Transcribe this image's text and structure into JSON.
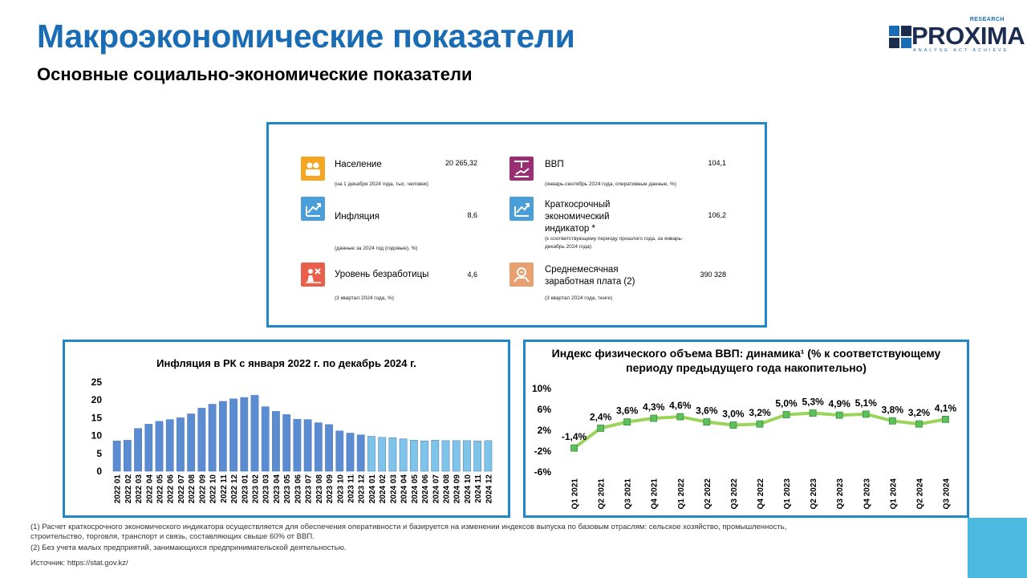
{
  "page": {
    "title": "Макроэкономические показатели",
    "subtitle": "Основные социально-экономические показатели"
  },
  "logo": {
    "name": "PROXIMA",
    "research": "RESEARCH",
    "tagline": "ANALYSE ACT ACHIEVE"
  },
  "indicators": [
    {
      "icon": "population-icon",
      "label": "Население",
      "value": "20 265,32",
      "note": "(на 1 декабря 2024 года, тыс. человек)",
      "color": "#f5a623"
    },
    {
      "icon": "gdp-icon",
      "label": "ВВП",
      "value": "104,1",
      "note": "(январь-сентябрь 2024 года, оперативные данные, %)",
      "color": "#9b2f73"
    },
    {
      "icon": "inflation-icon",
      "label": "Инфляция",
      "value": "8,6",
      "note": "(данные за 2024 год (годовые), %)",
      "color": "#4a9fd8"
    },
    {
      "icon": "short-term-indicator-icon",
      "label": "Краткосрочный экономический индикатор *",
      "value": "106,2",
      "note": "(к соответствующему периоду прошлого года, за январь-декабрь 2024 года)",
      "color": "#4a9fd8"
    },
    {
      "icon": "unemployment-icon",
      "label": "Уровень безработицы",
      "value": "4,6",
      "note": "(3 квартал 2024 года, %)",
      "color": "#e8604c"
    },
    {
      "icon": "salary-icon",
      "label": "Среднемесячная заработная плата (2)",
      "value": "390 328",
      "note": "(3 квартал 2024 года, тенге)",
      "color": "#e8a070"
    }
  ],
  "chart_data": [
    {
      "type": "bar",
      "title": "Инфляция в РК с января 2022 г. по декабрь 2024 г.",
      "categories": [
        "2022 01",
        "2022 02",
        "2022 03",
        "2022 04",
        "2022 05",
        "2022 06",
        "2022 07",
        "2022 08",
        "2022 09",
        "2022 10",
        "2022 11",
        "2022 12",
        "2023 01",
        "2023 02",
        "2023 03",
        "2023 04",
        "2023 05",
        "2023 06",
        "2023 07",
        "2023 08",
        "2023 09",
        "2023 10",
        "2023 11",
        "2023 12",
        "2024 01",
        "2024 02",
        "2024 03",
        "2024 04",
        "2024 05",
        "2024 06",
        "2024 07",
        "2024 08",
        "2024 09",
        "2024 10",
        "2024 11",
        "2024 12"
      ],
      "values": [
        8.5,
        8.7,
        12.0,
        13.2,
        14.0,
        14.5,
        15.0,
        16.1,
        17.7,
        18.8,
        19.6,
        20.3,
        20.7,
        21.3,
        18.1,
        16.8,
        15.9,
        14.6,
        14.5,
        13.6,
        13.1,
        11.3,
        10.7,
        10.2,
        9.8,
        9.5,
        9.4,
        9.1,
        8.7,
        8.5,
        8.7,
        8.6,
        8.6,
        8.6,
        8.5,
        8.6
      ],
      "colors": {
        "2022": "#5b8bd0",
        "2023": "#5b8bd0",
        "2024": "#7ec3e8"
      },
      "ylim": [
        0,
        25
      ],
      "yticks": [
        "0",
        "5",
        "10",
        "15",
        "20",
        "25"
      ]
    },
    {
      "type": "line",
      "title": "Индекс физического объема ВВП: динамика¹ (% к соответствующему периоду предыдущего года накопительно)",
      "categories": [
        "Q1 2021",
        "Q2 2021",
        "Q3 2021",
        "Q4 2021",
        "Q1 2022",
        "Q2 2022",
        "Q3 2022",
        "Q4 2022",
        "Q1 2023",
        "Q2 2023",
        "Q3 2023",
        "Q4 2023",
        "Q1 2024",
        "Q2 2024",
        "Q3 2024"
      ],
      "values": [
        -1.4,
        2.4,
        3.6,
        4.3,
        4.6,
        3.6,
        3.0,
        3.2,
        5.0,
        5.3,
        4.9,
        5.1,
        3.8,
        3.2,
        4.1
      ],
      "labels": [
        "-1,4%",
        "2,4%",
        "3,6%",
        "4,3%",
        "4,6%",
        "3,6%",
        "3,0%",
        "3,2%",
        "5,0%",
        "5,3%",
        "4,9%",
        "5,1%",
        "3,8%",
        "3,2%",
        "4,1%"
      ],
      "line_color": "#9bd45a",
      "marker_color": "#5cc05c",
      "yticks": [
        "10%",
        "6%",
        "2%",
        "-2%",
        "-6%"
      ],
      "ylim": [
        -6,
        10
      ]
    }
  ],
  "footnotes": [
    "(1) Расчет краткосрочного экономического индикатора осуществляется для обеспечения оперативности и базируется на изменении индексов выпуска по базовым отраслям: сельское хозяйство, промышленность, строительство, торговля, транспорт и связь, составляющих свыше 60% от ВВП.",
    "(2) Без учета малых предприятий, занимающихся предпринимательской деятельностью."
  ],
  "source": "Источник: https://stat.gov.kz/"
}
